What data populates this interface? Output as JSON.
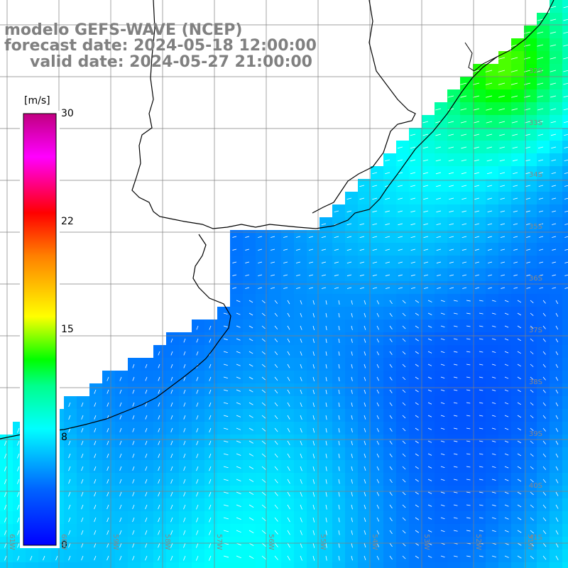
{
  "map": {
    "title_line1": "modelo GEFS-WAVE (NCEP)",
    "title_line2": "forecast date: 2024-05-18 12:00:00",
    "title_line3": "valid date: 2024-05-27 21:00:00",
    "variable": "wind speed",
    "region": "Southwest Atlantic / Rio de la Plata",
    "colorbar": {
      "unit": "[m/s]",
      "ticks": [
        "30",
        "22",
        "15",
        "8",
        "0"
      ],
      "colors": [
        "#0000ff",
        "#00a0ff",
        "#00ffff",
        "#00ff00",
        "#ffff00",
        "#ff8000",
        "#ff0000",
        "#ff00ff",
        "#c00080"
      ]
    },
    "lat_labels": [
      "32S",
      "33S",
      "34S",
      "35S",
      "36S",
      "37S",
      "38S",
      "39S",
      "40S",
      "41S"
    ],
    "lon_labels": [
      "61W",
      "60W",
      "59W",
      "58W",
      "57W",
      "56W",
      "55W",
      "54W",
      "53W",
      "52W",
      "51W"
    ],
    "colors": {
      "land": "#ffffff",
      "coast": "#000000",
      "grid": "#808080",
      "title": "#808080",
      "arrows": "#ffffff"
    }
  }
}
